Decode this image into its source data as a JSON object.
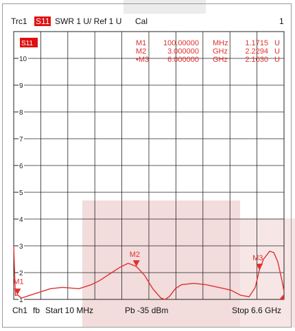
{
  "header": {
    "trace": "Trc1",
    "param": "S11",
    "format_scale": "SWR 1 U/ Ref 1 U",
    "cal": "Cal",
    "channel_index": "1"
  },
  "plot": {
    "badge": "S11",
    "y_ticks": [
      "10",
      "9",
      "8",
      "7",
      "6",
      "5",
      "4",
      "3",
      "2",
      "1"
    ],
    "trace_color": "#e03030",
    "markers": [
      {
        "name": "M1",
        "prefix": "",
        "freq": "100.00000",
        "unit": "MHz",
        "value": "1.1715",
        "vunit": "U"
      },
      {
        "name": "M2",
        "prefix": "",
        "freq": "3.000000",
        "unit": "GHz",
        "value": "2.2294",
        "vunit": "U"
      },
      {
        "name": "M3",
        "prefix": "•",
        "freq": "6.000000",
        "unit": "GHz",
        "value": "2.1030",
        "vunit": "U"
      }
    ]
  },
  "footer": {
    "channel": "Ch1",
    "fb": "fb",
    "start": "Start  10 MHz",
    "power": "Pb  -35 dBm",
    "stop": "Stop  6.6 GHz"
  },
  "chart_data": {
    "type": "line",
    "title": "",
    "xlabel": "",
    "ylabel": "",
    "x_unit": "GHz",
    "xlim": [
      0.01,
      6.6
    ],
    "ylim": [
      1,
      11
    ],
    "series": [
      {
        "x": [
          0.01,
          0.05,
          0.1,
          0.2,
          0.4,
          0.6,
          0.9,
          1.2,
          1.6,
          1.9,
          2.1,
          2.4,
          2.6,
          2.8,
          3.0,
          3.2,
          3.4,
          3.6,
          3.7,
          3.8,
          3.95,
          4.1,
          4.4,
          4.7,
          5.0,
          5.3,
          5.55,
          5.75,
          5.9,
          6.0,
          6.1,
          6.25,
          6.35,
          6.45,
          6.55,
          6.6
        ],
        "y": [
          3.0,
          1.15,
          1.17,
          1.05,
          1.15,
          1.25,
          1.4,
          1.45,
          1.4,
          1.55,
          1.7,
          2.0,
          2.2,
          2.35,
          2.23,
          1.9,
          1.4,
          1.05,
          1.0,
          1.1,
          1.4,
          1.55,
          1.6,
          1.55,
          1.45,
          1.35,
          1.15,
          1.1,
          1.45,
          2.1,
          2.5,
          2.8,
          2.75,
          2.4,
          1.7,
          1.3
        ]
      }
    ],
    "markers": [
      {
        "name": "M1",
        "x": 0.1,
        "y": 1.1715
      },
      {
        "name": "M2",
        "x": 3.0,
        "y": 2.2294
      },
      {
        "name": "M3",
        "x": 6.0,
        "y": 2.103
      }
    ]
  }
}
